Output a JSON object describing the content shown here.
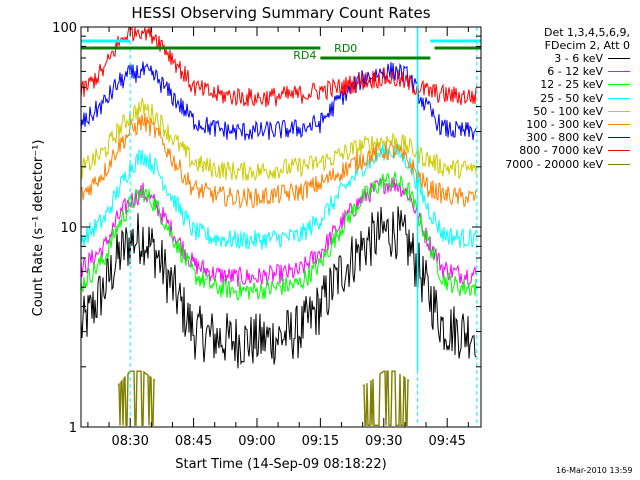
{
  "chart_data": {
    "type": "line",
    "title": "HESSI Observing Summary Count Rates",
    "xlabel": "Start Time (14-Sep-09 08:18:22)",
    "ylabel": "Count Rate (s⁻¹ detector⁻¹)",
    "y_scale": "log",
    "ylim": [
      1,
      100
    ],
    "xlim": [
      "08:18:22",
      "09:53:00"
    ],
    "x_ticks": [
      "08:30",
      "08:45",
      "09:00",
      "09:15",
      "09:30",
      "09:45"
    ],
    "y_ticks": [
      "1",
      "10",
      "100"
    ],
    "legend_header": [
      "Det 1,3,4,5,6,9,",
      "FDecim 2, Att 0"
    ],
    "legend_placement": "outside-right",
    "series": [
      {
        "name": "3 - 6 keV",
        "color": "#000000",
        "key": "s3_6",
        "x": [
          "08:18",
          "08:24",
          "08:27",
          "08:30",
          "08:33",
          "08:36",
          "08:40",
          "08:45",
          "08:50",
          "08:55",
          "09:00",
          "09:05",
          "09:10",
          "09:15",
          "09:20",
          "09:25",
          "09:30",
          "09:33",
          "09:36",
          "09:40",
          "09:44",
          "09:48",
          "09:52"
        ],
        "y": [
          3.0,
          5.0,
          7.0,
          8.5,
          9.0,
          7.5,
          5.0,
          3.0,
          2.8,
          2.7,
          2.7,
          2.8,
          3.0,
          4.0,
          6.0,
          8.0,
          9.5,
          9.5,
          8.0,
          5.0,
          3.2,
          3.0,
          3.0
        ]
      },
      {
        "name": "6 - 12 keV",
        "color": "#ff00ff",
        "key": "s6_12",
        "x": [
          "08:18",
          "08:24",
          "08:27",
          "08:30",
          "08:33",
          "08:36",
          "08:40",
          "08:45",
          "08:50",
          "08:55",
          "09:00",
          "09:05",
          "09:10",
          "09:15",
          "09:20",
          "09:25",
          "09:30",
          "09:33",
          "09:36",
          "09:40",
          "09:44",
          "09:48",
          "09:52"
        ],
        "y": [
          6.0,
          8.0,
          11.0,
          13.5,
          15.0,
          13.0,
          9.5,
          6.5,
          5.8,
          5.6,
          5.6,
          5.8,
          6.0,
          7.5,
          10.5,
          14.0,
          16.5,
          16.5,
          14.5,
          9.0,
          6.2,
          5.8,
          5.8
        ]
      },
      {
        "name": "12 - 25 keV",
        "color": "#00ff00",
        "key": "s12_25",
        "x": [
          "08:18",
          "08:24",
          "08:27",
          "08:30",
          "08:33",
          "08:36",
          "08:40",
          "08:45",
          "08:50",
          "08:55",
          "09:00",
          "09:05",
          "09:10",
          "09:15",
          "09:20",
          "09:25",
          "09:30",
          "09:33",
          "09:36",
          "09:40",
          "09:44",
          "09:48",
          "09:52"
        ],
        "y": [
          5.0,
          7.0,
          10.0,
          13.0,
          15.0,
          13.0,
          9.0,
          5.8,
          5.0,
          4.8,
          4.8,
          5.0,
          5.2,
          6.5,
          10.0,
          14.0,
          17.0,
          17.0,
          15.0,
          9.0,
          5.5,
          5.0,
          5.0
        ]
      },
      {
        "name": "25 - 50 keV",
        "color": "#00ffff",
        "key": "s25_50",
        "x": [
          "08:18",
          "08:24",
          "08:27",
          "08:30",
          "08:33",
          "08:36",
          "08:40",
          "08:45",
          "08:50",
          "08:55",
          "09:00",
          "09:05",
          "09:10",
          "09:15",
          "09:20",
          "09:25",
          "09:30",
          "09:33",
          "09:36",
          "09:40",
          "09:44",
          "09:48",
          "09:52"
        ],
        "y": [
          8.5,
          11.0,
          15.0,
          20.0,
          23.0,
          20.0,
          14.0,
          9.5,
          8.8,
          8.6,
          8.6,
          8.8,
          9.0,
          11.0,
          15.0,
          20.0,
          24.0,
          24.0,
          21.0,
          13.0,
          9.2,
          8.8,
          8.8
        ]
      },
      {
        "name": "50 - 100 keV",
        "color": "#cccc00",
        "key": "s50_100",
        "x": [
          "08:18",
          "08:24",
          "08:27",
          "08:30",
          "08:33",
          "08:36",
          "08:40",
          "08:45",
          "08:50",
          "08:55",
          "09:00",
          "09:05",
          "09:10",
          "09:15",
          "09:20",
          "09:25",
          "09:30",
          "09:33",
          "09:36",
          "09:40",
          "09:44",
          "09:48",
          "09:52"
        ],
        "y": [
          19.0,
          24.0,
          30.0,
          36.0,
          40.0,
          36.0,
          28.0,
          21.0,
          19.5,
          19.0,
          19.0,
          19.5,
          20.0,
          21.0,
          23.0,
          25.5,
          27.0,
          27.0,
          25.0,
          22.0,
          20.0,
          19.5,
          19.5
        ]
      },
      {
        "name": "100 - 300 keV",
        "color": "#ff8000",
        "key": "s100_300",
        "x": [
          "08:18",
          "08:24",
          "08:27",
          "08:30",
          "08:33",
          "08:36",
          "08:40",
          "08:45",
          "08:50",
          "08:55",
          "09:00",
          "09:05",
          "09:10",
          "09:15",
          "09:20",
          "09:25",
          "09:30",
          "09:33",
          "09:36",
          "09:40",
          "09:44",
          "09:48",
          "09:52"
        ],
        "y": [
          14.0,
          19.0,
          25.0,
          30.0,
          34.0,
          30.0,
          22.0,
          15.5,
          14.5,
          14.0,
          14.0,
          14.5,
          15.0,
          16.5,
          19.0,
          22.0,
          24.0,
          24.0,
          21.0,
          16.0,
          14.5,
          14.0,
          14.0
        ]
      },
      {
        "name": "300 - 800 keV",
        "color": "#0000ff",
        "key": "s300_800",
        "x": [
          "08:18",
          "08:24",
          "08:27",
          "08:30",
          "08:33",
          "08:36",
          "08:40",
          "08:45",
          "08:50",
          "08:55",
          "09:00",
          "09:05",
          "09:10",
          "09:15",
          "09:20",
          "09:25",
          "09:30",
          "09:33",
          "09:36",
          "09:40",
          "09:44",
          "09:48",
          "09:52"
        ],
        "y": [
          32.0,
          42.0,
          52.0,
          58.0,
          60.0,
          56.0,
          45.0,
          34.0,
          31.0,
          30.0,
          30.0,
          30.5,
          31.0,
          33.0,
          45.0,
          55.0,
          60.0,
          60.0,
          56.0,
          40.0,
          31.0,
          30.0,
          30.0
        ]
      },
      {
        "name": "800 - 7000 keV",
        "color": "#ff0000",
        "key": "s800_7000",
        "x": [
          "08:18",
          "08:24",
          "08:27",
          "08:30",
          "08:33",
          "08:36",
          "08:40",
          "08:45",
          "08:50",
          "08:55",
          "09:00",
          "09:05",
          "09:10",
          "09:15",
          "09:20",
          "09:25",
          "09:30",
          "09:33",
          "09:36",
          "09:40",
          "09:44",
          "09:48",
          "09:52"
        ],
        "y": [
          46.0,
          62.0,
          82.0,
          95.0,
          98.0,
          90.0,
          70.0,
          50.0,
          46.0,
          45.0,
          44.0,
          45.0,
          46.0,
          48.0,
          50.0,
          54.0,
          56.0,
          55.0,
          52.0,
          48.0,
          46.0,
          45.0,
          45.0
        ]
      },
      {
        "name": "7000 - 20000 keV",
        "color": "#808000",
        "key": "s7000_20000",
        "x": [
          "08:18",
          "08:24",
          "08:27",
          "08:30",
          "08:33",
          "08:36",
          "08:40",
          "08:45",
          "08:50",
          "08:55",
          "09:00",
          "09:05",
          "09:10",
          "09:15",
          "09:20",
          "09:25",
          "09:30",
          "09:33",
          "09:36",
          "09:40",
          "09:44",
          "09:48",
          "09:52"
        ],
        "y": [
          null,
          null,
          1.6,
          1.9,
          1.9,
          1.7,
          null,
          null,
          null,
          null,
          null,
          null,
          null,
          null,
          null,
          1.6,
          1.9,
          1.9,
          1.7,
          null,
          null,
          null,
          null
        ]
      }
    ],
    "attenuator_states": [
      {
        "label": "RD4",
        "start": "09:15",
        "end": "09:18"
      },
      {
        "label": "RD0",
        "start": "09:18",
        "end": "09:42"
      }
    ]
  },
  "timestamp": "16-Mar-2010 13:59"
}
